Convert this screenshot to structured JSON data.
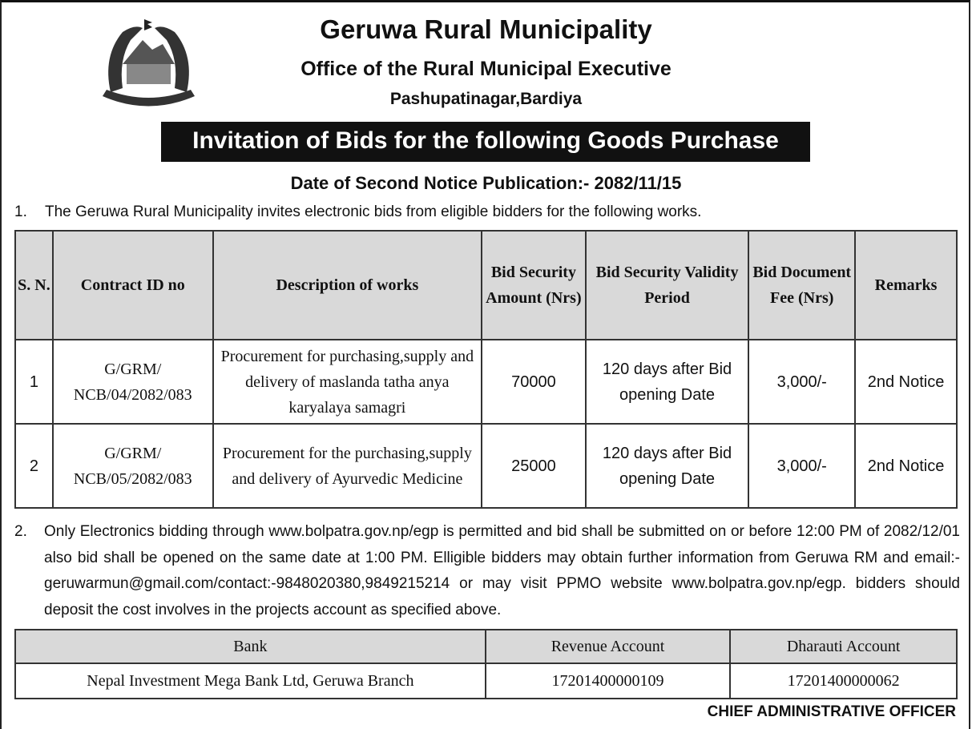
{
  "header": {
    "org": "Geruwa Rural Municipality",
    "office": "Office of the Rural Municipal Executive",
    "address": "Pashupatinagar,Bardiya",
    "title": "Invitation of Bids for the following  Goods Purchase",
    "date_line": "Date of  Second Notice Publication:- 2082/11/15"
  },
  "para1": {
    "num": "1.",
    "text": "The Geruwa Rural Municipality invites electronic bids  from eligible bidders for the following works."
  },
  "bids_table": {
    "headers": [
      "S. N.",
      "Contract ID no",
      "Description of works",
      "Bid Security Amount (Nrs)",
      "Bid Security Validity Period",
      "Bid Document Fee (Nrs)",
      "Remarks"
    ],
    "rows": [
      [
        "1",
        "G/GRM/ NCB/04/2082/083",
        "Procurement for purchasing,supply and delivery of maslanda tatha anya karyalaya samagri",
        "70000",
        "120 days after Bid opening Date",
        "3,000/-",
        "2nd Notice"
      ],
      [
        "2",
        "G/GRM/ NCB/05/2082/083",
        "Procurement for the purchasing,supply and delivery of Ayurvedic Medicine",
        "25000",
        "120 days after Bid opening Date",
        "3,000/-",
        "2nd Notice"
      ]
    ]
  },
  "para2": {
    "num": "2.",
    "text": "Only Electronics bidding through www.bolpatra.gov.np/egp is permitted and bid   shall be submitted on or before 12:00 PM of 2082/12/01 also  bid shall be opened on the same date at 1:00 PM. Elligible bidders may obtain further information from Geruwa RM and email:- geruwarmun@gmail.com/contact:-9848020380,9849215214 or may visit PPMO website www.bolpatra.gov.np/egp. bidders should deposit the cost involves  in the projects account as specified above."
  },
  "bank_table": {
    "headers": [
      "Bank",
      "Revenue Account",
      "Dharauti Account"
    ],
    "row": [
      "Nepal Investment Mega Bank Ltd, Geruwa Branch",
      "17201400000109",
      "17201400000062"
    ]
  },
  "signature": "CHIEF ADMINISTRATIVE OFFICER"
}
